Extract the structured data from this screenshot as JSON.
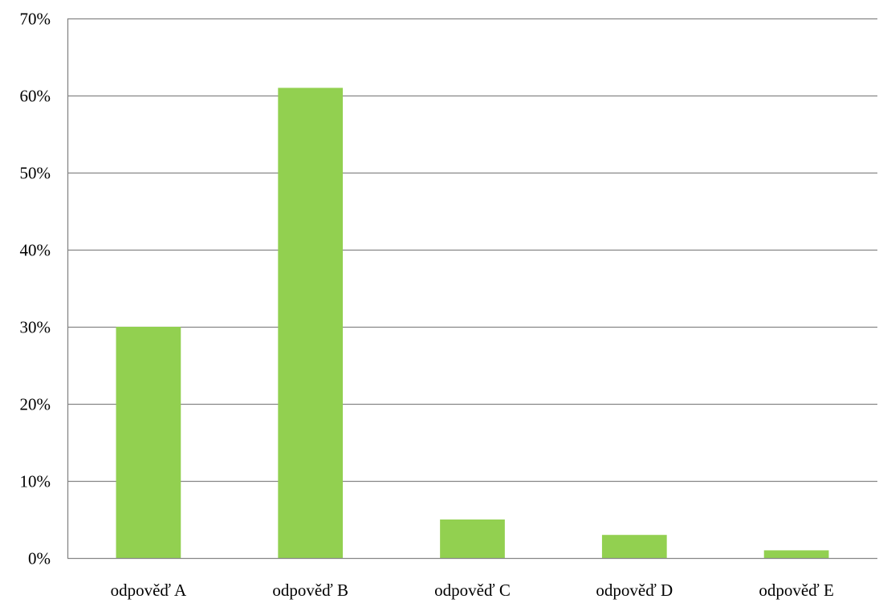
{
  "chart_data": {
    "type": "bar",
    "categories": [
      "odpověď A",
      "odpověď B",
      "odpověď C",
      "odpověď D",
      "odpověď E"
    ],
    "values": [
      30,
      61,
      5,
      3,
      1
    ],
    "value_format": "percent",
    "ylim": [
      0,
      70
    ],
    "yticks": [
      0,
      10,
      20,
      30,
      40,
      50,
      60,
      70
    ],
    "ytick_labels": [
      "0%",
      "10%",
      "20%",
      "30%",
      "40%",
      "50%",
      "60%",
      "70%"
    ],
    "title": "",
    "xlabel": "",
    "ylabel": "",
    "grid": "horizontal",
    "legend": "none",
    "colors": {
      "bar": "#92d050",
      "gridline": "#868686",
      "axis": "#868686",
      "text": "#000000"
    }
  }
}
